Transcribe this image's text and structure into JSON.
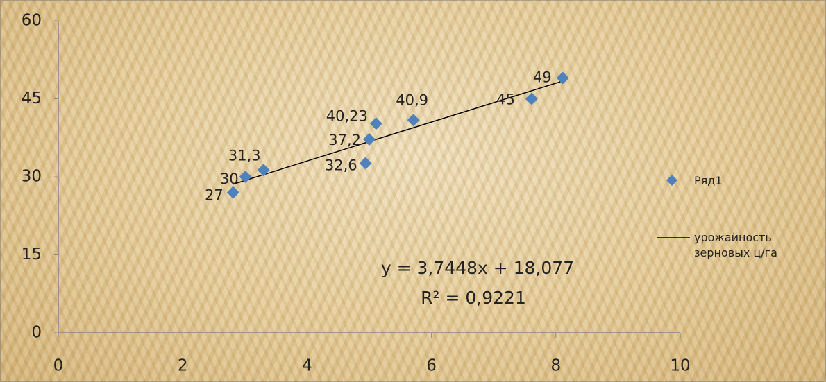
{
  "chart_data": {
    "type": "scatter",
    "series": [
      {
        "name": "Ряд1",
        "color": "#4f81bd",
        "x": [
          2.81,
          3.01,
          3.3,
          4.94,
          5.0,
          5.11,
          5.71,
          7.61,
          8.11
        ],
        "values": [
          27,
          30,
          31.3,
          32.6,
          37.2,
          40.23,
          40.9,
          45,
          49
        ],
        "value_labels": [
          "27",
          "30",
          "31,3",
          "32,6",
          "37,2",
          "40,23",
          "40,9",
          "45",
          "49"
        ]
      }
    ],
    "trendline": {
      "name": "урожайность зерновых ц/га",
      "equation": "y = 3,7448x + 18,077",
      "r_squared": "R² = 0,9221",
      "color": "#000000"
    },
    "xlim": [
      0,
      10
    ],
    "xticks": [
      0,
      2,
      4,
      6,
      8,
      10
    ],
    "ylim": [
      0,
      60
    ],
    "yticks": [
      0,
      15,
      30,
      45,
      60
    ],
    "legend": "right"
  }
}
